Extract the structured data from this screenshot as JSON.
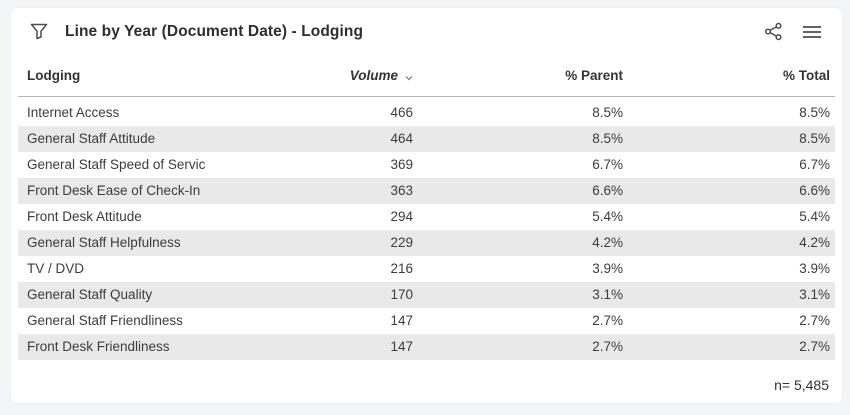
{
  "widget": {
    "title": "Line by Year (Document Date) - Lodging",
    "footer_note": "n= 5,485"
  },
  "header_icons": {
    "filter": "funnel-filter-icon",
    "share": "share-icon",
    "menu": "hamburger-menu-icon"
  },
  "table": {
    "columns": {
      "dimension": "Lodging",
      "volume": "Volume",
      "parent": "% Parent",
      "total": "% Total"
    },
    "sort": {
      "column": "Volume",
      "direction": "descending"
    },
    "rows": [
      {
        "label": "Internet Access",
        "volume": "466",
        "parent": "8.5%",
        "total": "8.5%"
      },
      {
        "label": "General Staff Attitude",
        "volume": "464",
        "parent": "8.5%",
        "total": "8.5%"
      },
      {
        "label": "General Staff Speed of Servic",
        "volume": "369",
        "parent": "6.7%",
        "total": "6.7%"
      },
      {
        "label": "Front Desk Ease of Check-In",
        "volume": "363",
        "parent": "6.6%",
        "total": "6.6%"
      },
      {
        "label": "Front Desk Attitude",
        "volume": "294",
        "parent": "5.4%",
        "total": "5.4%"
      },
      {
        "label": "General Staff Helpfulness",
        "volume": "229",
        "parent": "4.2%",
        "total": "4.2%"
      },
      {
        "label": "TV / DVD",
        "volume": "216",
        "parent": "3.9%",
        "total": "3.9%"
      },
      {
        "label": "General Staff Quality",
        "volume": "170",
        "parent": "3.1%",
        "total": "3.1%"
      },
      {
        "label": "General Staff Friendliness",
        "volume": "147",
        "parent": "2.7%",
        "total": "2.7%"
      },
      {
        "label": "Front Desk Friendliness",
        "volume": "147",
        "parent": "2.7%",
        "total": "2.7%"
      }
    ]
  },
  "colors": {
    "canvas_background": "#f4f5f6",
    "card_background": "#ffffff",
    "row_stripe": "#e9e9e9",
    "text": "#3c3c3c",
    "header_rule": "#b4b4b4",
    "icon": "#4d4d4d"
  }
}
